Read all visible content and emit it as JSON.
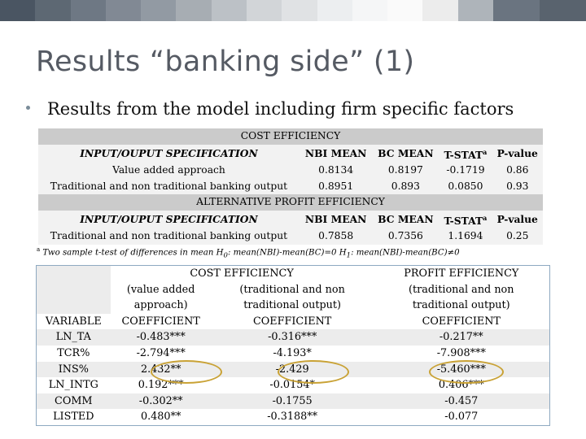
{
  "colors": {
    "topbar": [
      "#4a5562",
      "#5d6873",
      "#6e7884",
      "#818994",
      "#929aa3",
      "#a7adb3",
      "#bcc1c6",
      "#d2d5d8",
      "#e0e2e4",
      "#eceef0",
      "#f5f6f7",
      "#fafafa",
      "#ececec",
      "#aeb4ba",
      "#6a7480",
      "#59636e"
    ],
    "title": "#555a63",
    "highlight_circle": "#c9a235"
  },
  "slide": {
    "title": "Results “banking side” (1)",
    "bullet": "Results from the model including firm specific factors"
  },
  "top_table": {
    "cost_heading": "COST EFFICIENCY",
    "profit_heading": "ALTERNATIVE PROFIT EFFICIENCY",
    "header": {
      "spec": "INPUT/OUPUT SPECIFICATION",
      "nbi": "NBI MEAN",
      "bc": "BC MEAN",
      "tstat": "T-STAT",
      "tstat_sup": "a",
      "pval": "P-value"
    },
    "cost_rows": [
      {
        "label": "Value added approach",
        "nbi": "0.8134",
        "bc": "0.8197",
        "tstat": "-0.1719",
        "pval": "0.86"
      },
      {
        "label": "Traditional and non traditional banking output",
        "nbi": "0.8951",
        "bc": "0.893",
        "tstat": "0.0850",
        "pval": "0.93"
      }
    ],
    "profit_rows": [
      {
        "label": "Traditional and non traditional banking output",
        "nbi": "0.7858",
        "bc": "0.7356",
        "tstat": "1.1694",
        "pval": "0.25"
      }
    ]
  },
  "footnote": {
    "sup": "a",
    "text_a": " Two sample t-test of differences in mean H",
    "sub0": "0",
    "text_b": ": mean(NBI)-mean(BC)=0 H",
    "sub1": "1",
    "text_c": ": mean(NBI)-mean(BC)≠0"
  },
  "bottom_table": {
    "cost_banner": "COST EFFICIENCY",
    "profit_banner": "PROFIT EFFICIENCY",
    "sub1": [
      "(value added",
      "approach)"
    ],
    "sub2": [
      "(traditional and non",
      "traditional output)"
    ],
    "sub3": [
      "(traditional and non",
      "traditional output)"
    ],
    "var_header": "VARIABLE",
    "coef_header": "COEFFICIENT",
    "rows": [
      {
        "var": "LN_TA",
        "c1": "-0.483***",
        "c2": "-0.316***",
        "c3": "-0.217**"
      },
      {
        "var": "TCR%",
        "c1": "-2.794***",
        "c2": "-4.193*",
        "c3": "-7.908***"
      },
      {
        "var": "INS%",
        "c1": "2.432**",
        "c2": "-2.429",
        "c3": "-5.460***"
      },
      {
        "var": "LN_INTG",
        "c1": "0.192***",
        "c2": "-0.0154*",
        "c3": "0.406***"
      },
      {
        "var": "COMM",
        "c1": "-0.302**",
        "c2": "-0.1755",
        "c3": "-0.457"
      },
      {
        "var": "LISTED",
        "c1": "0.480**",
        "c2": "-0.3188**",
        "c3": "-0.077"
      }
    ]
  }
}
